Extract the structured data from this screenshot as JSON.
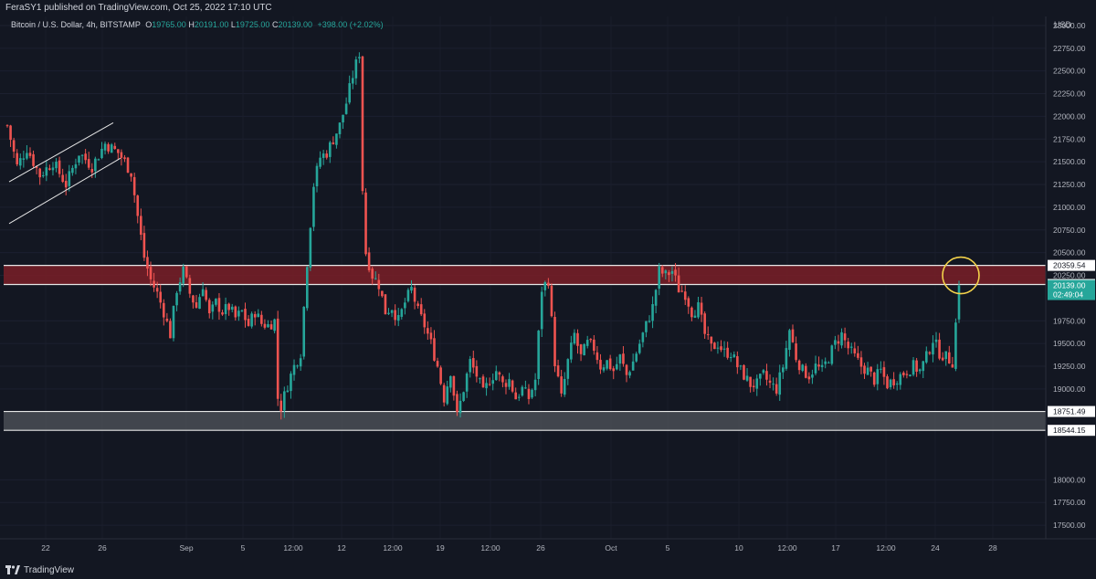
{
  "header": {
    "banner": "FeraSY1 published on TradingView.com, Oct 25, 2022 17:10 UTC"
  },
  "legend": {
    "symbol": "Bitcoin / U.S. Dollar, 4h, BITSTAMP",
    "open_label": "O",
    "open": "19765.00",
    "high_label": "H",
    "high": "20191.00",
    "low_label": "L",
    "low": "19725.00",
    "close_label": "C",
    "close": "20139.00",
    "change": "+398.00 (+2.02%)"
  },
  "price_axis": {
    "currency": "USD",
    "ticks": [
      "23000.00",
      "22750.00",
      "22500.00",
      "22250.00",
      "22000.00",
      "21750.00",
      "21500.00",
      "21250.00",
      "21000.00",
      "20750.00",
      "20500.00",
      "20250.00",
      "19750.00",
      "19500.00",
      "19250.00",
      "19000.00",
      "18000.00",
      "17750.00",
      "17500.00"
    ]
  },
  "time_axis": {
    "ticks": [
      "22",
      "26",
      "Sep",
      "5",
      "12:00",
      "12",
      "12:00",
      "19",
      "12:00",
      "26",
      "Oct",
      "5",
      "10",
      "12:00",
      "17",
      "12:00",
      "24",
      "28"
    ]
  },
  "zones": [
    {
      "name": "resistance",
      "upper": "20359.54",
      "lower": "20149.44",
      "color": "#7a1f27"
    },
    {
      "name": "support",
      "upper": "18751.49",
      "lower": "18544.15",
      "color": "#4a4d55"
    }
  ],
  "current_price": {
    "value": "20139.00",
    "countdown": "02:49:04",
    "color": "#26a69a"
  },
  "footer": {
    "brand": "TradingView"
  },
  "colors": {
    "up": "#26a69a",
    "down": "#ef5350",
    "background": "#131722",
    "highlight_circle": "#f2d14a"
  },
  "chart_data": {
    "type": "candlestick",
    "symbol": "BTCUSD",
    "interval": "4h",
    "exchange": "BITSTAMP",
    "y_range": [
      17350,
      23100
    ],
    "x_labels": [
      "22",
      "26",
      "Sep",
      "5",
      "12:00",
      "12",
      "12:00",
      "19",
      "12:00",
      "26",
      "Oct",
      "5",
      "10",
      "12:00",
      "17",
      "12:00",
      "24",
      "28"
    ],
    "annotations": [
      "ascending channel (early Aug 22-26)",
      "resistance zone 20149.44-20359.54",
      "support zone 18544.15-18751.49",
      "yellow circle at current price"
    ],
    "price_path": [
      [
        0,
        21900
      ],
      [
        3,
        21450
      ],
      [
        6,
        21650
      ],
      [
        10,
        21350
      ],
      [
        14,
        21500
      ],
      [
        18,
        21250
      ],
      [
        22,
        21600
      ],
      [
        26,
        21450
      ],
      [
        30,
        21700
      ],
      [
        34,
        21600
      ],
      [
        36,
        21500
      ],
      [
        38,
        21380
      ],
      [
        40,
        20900
      ],
      [
        42,
        20450
      ],
      [
        44,
        20200
      ],
      [
        46,
        20050
      ],
      [
        48,
        19850
      ],
      [
        50,
        19600
      ],
      [
        52,
        20100
      ],
      [
        54,
        20300
      ],
      [
        56,
        20050
      ],
      [
        58,
        19900
      ],
      [
        60,
        20150
      ],
      [
        62,
        19800
      ],
      [
        64,
        19950
      ],
      [
        66,
        19850
      ],
      [
        68,
        19900
      ],
      [
        70,
        19780
      ],
      [
        72,
        19850
      ],
      [
        74,
        19700
      ],
      [
        76,
        19850
      ],
      [
        78,
        19720
      ],
      [
        80,
        19700
      ],
      [
        82,
        19750
      ],
      [
        83,
        18900
      ],
      [
        84,
        18800
      ],
      [
        86,
        19050
      ],
      [
        88,
        19250
      ],
      [
        90,
        19400
      ],
      [
        92,
        20400
      ],
      [
        94,
        21250
      ],
      [
        96,
        21550
      ],
      [
        98,
        21600
      ],
      [
        100,
        21750
      ],
      [
        102,
        21900
      ],
      [
        104,
        22150
      ],
      [
        106,
        22450
      ],
      [
        108,
        22700
      ],
      [
        109,
        21200
      ],
      [
        110,
        20500
      ],
      [
        112,
        20250
      ],
      [
        114,
        20150
      ],
      [
        116,
        19850
      ],
      [
        118,
        19900
      ],
      [
        120,
        19750
      ],
      [
        122,
        19950
      ],
      [
        124,
        20100
      ],
      [
        126,
        19850
      ],
      [
        128,
        19700
      ],
      [
        130,
        19500
      ],
      [
        132,
        19250
      ],
      [
        134,
        18900
      ],
      [
        136,
        19200
      ],
      [
        138,
        18700
      ],
      [
        140,
        19000
      ],
      [
        142,
        19300
      ],
      [
        144,
        19150
      ],
      [
        146,
        18950
      ],
      [
        148,
        19100
      ],
      [
        150,
        19200
      ],
      [
        152,
        19050
      ],
      [
        154,
        19100
      ],
      [
        156,
        18900
      ],
      [
        158,
        19000
      ],
      [
        160,
        18900
      ],
      [
        162,
        19100
      ],
      [
        164,
        20100
      ],
      [
        166,
        20200
      ],
      [
        168,
        19300
      ],
      [
        170,
        18900
      ],
      [
        172,
        19300
      ],
      [
        174,
        19600
      ],
      [
        176,
        19350
      ],
      [
        178,
        19500
      ],
      [
        180,
        19450
      ],
      [
        182,
        19250
      ],
      [
        184,
        19300
      ],
      [
        186,
        19200
      ],
      [
        188,
        19350
      ],
      [
        190,
        19150
      ],
      [
        192,
        19300
      ],
      [
        194,
        19500
      ],
      [
        196,
        19700
      ],
      [
        198,
        19900
      ],
      [
        200,
        20300
      ],
      [
        202,
        20250
      ],
      [
        204,
        20300
      ],
      [
        206,
        20100
      ],
      [
        208,
        20050
      ],
      [
        210,
        19850
      ],
      [
        212,
        19900
      ],
      [
        214,
        19600
      ],
      [
        216,
        19450
      ],
      [
        218,
        19500
      ],
      [
        220,
        19400
      ],
      [
        222,
        19400
      ],
      [
        224,
        19250
      ],
      [
        226,
        19150
      ],
      [
        228,
        19050
      ],
      [
        230,
        19050
      ],
      [
        232,
        19150
      ],
      [
        234,
        19050
      ],
      [
        236,
        19000
      ],
      [
        238,
        19250
      ],
      [
        240,
        19650
      ],
      [
        242,
        19350
      ],
      [
        244,
        19200
      ],
      [
        246,
        19150
      ],
      [
        248,
        19250
      ],
      [
        250,
        19200
      ],
      [
        252,
        19350
      ],
      [
        254,
        19500
      ],
      [
        256,
        19600
      ],
      [
        258,
        19450
      ],
      [
        260,
        19350
      ],
      [
        262,
        19250
      ],
      [
        264,
        19200
      ],
      [
        266,
        19100
      ],
      [
        268,
        19200
      ],
      [
        270,
        19050
      ],
      [
        272,
        19100
      ],
      [
        274,
        19150
      ],
      [
        276,
        19200
      ],
      [
        278,
        19250
      ],
      [
        280,
        19200
      ],
      [
        282,
        19350
      ],
      [
        284,
        19550
      ],
      [
        286,
        19400
      ],
      [
        288,
        19350
      ],
      [
        290,
        19300
      ],
      [
        292,
        20139
      ]
    ]
  }
}
